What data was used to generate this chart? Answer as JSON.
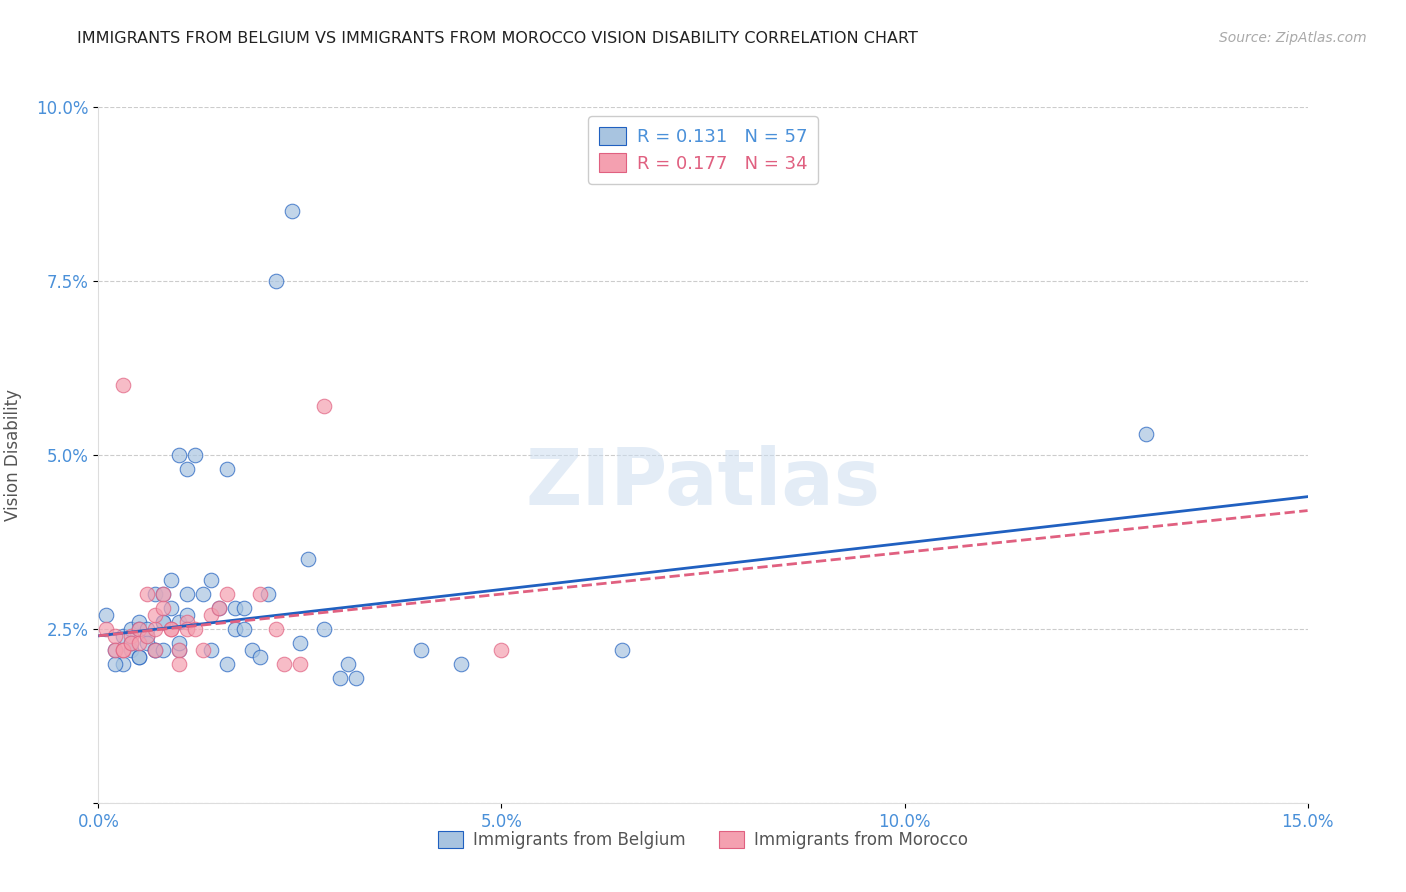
{
  "title": "IMMIGRANTS FROM BELGIUM VS IMMIGRANTS FROM MOROCCO VISION DISABILITY CORRELATION CHART",
  "source": "Source: ZipAtlas.com",
  "ylabel": "Vision Disability",
  "legend_label_belgium": "Immigrants from Belgium",
  "legend_label_morocco": "Immigrants from Morocco",
  "r_belgium": 0.131,
  "n_belgium": 57,
  "r_morocco": 0.177,
  "n_morocco": 34,
  "xlim": [
    0.0,
    0.15
  ],
  "ylim": [
    0.0,
    0.1
  ],
  "xticks": [
    0.0,
    0.05,
    0.1,
    0.15
  ],
  "yticks": [
    0.0,
    0.025,
    0.05,
    0.075,
    0.1
  ],
  "xticklabels": [
    "0.0%",
    "5.0%",
    "10.0%",
    "15.0%"
  ],
  "yticklabels": [
    "",
    "2.5%",
    "5.0%",
    "7.5%",
    "10.0%"
  ],
  "color_belgium": "#a8c4e0",
  "color_morocco": "#f4a0b0",
  "color_line_belgium": "#2060c0",
  "color_line_morocco": "#e06080",
  "color_axis_labels": "#4a90d9",
  "watermark": "ZIPatlas",
  "belgium_scatter": [
    [
      0.001,
      0.027
    ],
    [
      0.002,
      0.022
    ],
    [
      0.003,
      0.024
    ],
    [
      0.003,
      0.02
    ],
    [
      0.004,
      0.025
    ],
    [
      0.004,
      0.022
    ],
    [
      0.004,
      0.023
    ],
    [
      0.005,
      0.026
    ],
    [
      0.005,
      0.021
    ],
    [
      0.005,
      0.025
    ],
    [
      0.005,
      0.021
    ],
    [
      0.006,
      0.024
    ],
    [
      0.006,
      0.025
    ],
    [
      0.006,
      0.023
    ],
    [
      0.007,
      0.03
    ],
    [
      0.007,
      0.022
    ],
    [
      0.007,
      0.022
    ],
    [
      0.008,
      0.03
    ],
    [
      0.008,
      0.026
    ],
    [
      0.008,
      0.026
    ],
    [
      0.008,
      0.022
    ],
    [
      0.009,
      0.032
    ],
    [
      0.009,
      0.028
    ],
    [
      0.01,
      0.05
    ],
    [
      0.01,
      0.022
    ],
    [
      0.01,
      0.026
    ],
    [
      0.01,
      0.023
    ],
    [
      0.011,
      0.03
    ],
    [
      0.011,
      0.027
    ],
    [
      0.011,
      0.048
    ],
    [
      0.012,
      0.05
    ],
    [
      0.013,
      0.03
    ],
    [
      0.014,
      0.032
    ],
    [
      0.014,
      0.022
    ],
    [
      0.015,
      0.028
    ],
    [
      0.016,
      0.048
    ],
    [
      0.016,
      0.02
    ],
    [
      0.017,
      0.028
    ],
    [
      0.017,
      0.025
    ],
    [
      0.018,
      0.025
    ],
    [
      0.018,
      0.028
    ],
    [
      0.019,
      0.022
    ],
    [
      0.02,
      0.021
    ],
    [
      0.021,
      0.03
    ],
    [
      0.022,
      0.075
    ],
    [
      0.024,
      0.085
    ],
    [
      0.025,
      0.023
    ],
    [
      0.026,
      0.035
    ],
    [
      0.028,
      0.025
    ],
    [
      0.03,
      0.018
    ],
    [
      0.031,
      0.02
    ],
    [
      0.032,
      0.018
    ],
    [
      0.04,
      0.022
    ],
    [
      0.045,
      0.02
    ],
    [
      0.065,
      0.022
    ],
    [
      0.13,
      0.053
    ],
    [
      0.002,
      0.02
    ]
  ],
  "morocco_scatter": [
    [
      0.001,
      0.025
    ],
    [
      0.002,
      0.024
    ],
    [
      0.002,
      0.022
    ],
    [
      0.003,
      0.022
    ],
    [
      0.003,
      0.022
    ],
    [
      0.004,
      0.024
    ],
    [
      0.004,
      0.023
    ],
    [
      0.005,
      0.025
    ],
    [
      0.005,
      0.023
    ],
    [
      0.006,
      0.03
    ],
    [
      0.006,
      0.024
    ],
    [
      0.007,
      0.022
    ],
    [
      0.007,
      0.025
    ],
    [
      0.007,
      0.027
    ],
    [
      0.008,
      0.03
    ],
    [
      0.008,
      0.028
    ],
    [
      0.009,
      0.025
    ],
    [
      0.009,
      0.025
    ],
    [
      0.01,
      0.022
    ],
    [
      0.01,
      0.02
    ],
    [
      0.011,
      0.026
    ],
    [
      0.011,
      0.025
    ],
    [
      0.012,
      0.025
    ],
    [
      0.013,
      0.022
    ],
    [
      0.014,
      0.027
    ],
    [
      0.015,
      0.028
    ],
    [
      0.016,
      0.03
    ],
    [
      0.02,
      0.03
    ],
    [
      0.022,
      0.025
    ],
    [
      0.023,
      0.02
    ],
    [
      0.025,
      0.02
    ],
    [
      0.028,
      0.057
    ],
    [
      0.05,
      0.022
    ],
    [
      0.003,
      0.06
    ]
  ],
  "belgium_line": [
    [
      0.0,
      0.024
    ],
    [
      0.15,
      0.044
    ]
  ],
  "morocco_line": [
    [
      0.0,
      0.024
    ],
    [
      0.15,
      0.042
    ]
  ]
}
